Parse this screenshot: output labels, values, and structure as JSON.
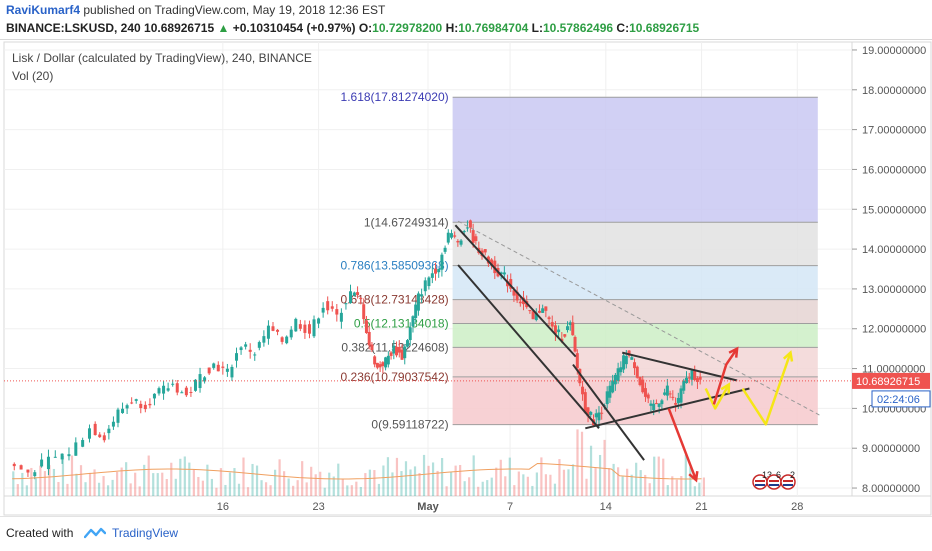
{
  "header": {
    "user": "RaviKumarf4",
    "published": "published on TradingView.com, May 19, 2018 12:36 EST",
    "symbol": "BINANCE:LSKUSD, 240",
    "last": "10.68926715",
    "change_arrow": "▲",
    "change": "+0.10310454 (+0.97%)",
    "o_label": "O:",
    "o": "10.72978200",
    "h_label": "H:",
    "h": "10.76984704",
    "l_label": "L:",
    "l": "10.57862496",
    "c_label": "C:",
    "c": "10.68926715"
  },
  "chart_data": {
    "type": "line",
    "title": "Lisk / Dollar (calculated by TradingView), 240, BINANCE",
    "subtitle": "Vol (20)",
    "ylim": [
      7.8,
      19.2
    ],
    "y_ticks": [
      "19.00000000",
      "18.00000000",
      "17.00000000",
      "16.00000000",
      "15.00000000",
      "14.00000000",
      "13.00000000",
      "12.00000000",
      "11.00000000",
      "10.00000000",
      "9.00000000",
      "8.00000000"
    ],
    "y_tick_values": [
      19,
      18,
      17,
      16,
      15,
      14,
      13,
      12,
      11,
      10,
      9,
      8
    ],
    "x_ticks": [
      "16",
      "23",
      "May",
      "7",
      "14",
      "21",
      "28"
    ],
    "x_tick_days": [
      -15,
      -8,
      0,
      6,
      13,
      20,
      27
    ],
    "xlim": [
      -31,
      31
    ],
    "current_price_label": "10.68926715",
    "countdown_label": "02:24:06",
    "current_price": 10.69,
    "price_path": [
      [
        -30.5,
        8.6
      ],
      [
        -29,
        8.4
      ],
      [
        -27.5,
        8.7
      ],
      [
        -26,
        8.9
      ],
      [
        -24.5,
        9.5
      ],
      [
        -23.5,
        9.3
      ],
      [
        -22.5,
        9.9
      ],
      [
        -21.5,
        10.2
      ],
      [
        -20.5,
        10.1
      ],
      [
        -19.5,
        10.4
      ],
      [
        -18.5,
        10.6
      ],
      [
        -17.5,
        10.3
      ],
      [
        -16.5,
        10.8
      ],
      [
        -15.5,
        11.1
      ],
      [
        -14.5,
        10.9
      ],
      [
        -13.5,
        11.6
      ],
      [
        -12.5,
        11.4
      ],
      [
        -11.5,
        12.0
      ],
      [
        -10.5,
        11.7
      ],
      [
        -9.5,
        12.2
      ],
      [
        -8.5,
        11.9
      ],
      [
        -7.5,
        12.6
      ],
      [
        -6.5,
        12.3
      ],
      [
        -5.5,
        12.9
      ],
      [
        -4.8,
        12.7
      ],
      [
        -4.2,
        11.6
      ],
      [
        -3.6,
        11.0
      ],
      [
        -3.0,
        11.2
      ],
      [
        -2.4,
        11.5
      ],
      [
        -1.8,
        11.3
      ],
      [
        -1.2,
        12.0
      ],
      [
        -0.6,
        12.8
      ],
      [
        0.2,
        13.3
      ],
      [
        0.9,
        13.6
      ],
      [
        1.6,
        14.4
      ],
      [
        2.3,
        14.2
      ],
      [
        3.0,
        14.6
      ],
      [
        3.6,
        14.1
      ],
      [
        4.3,
        13.8
      ],
      [
        5.0,
        13.5
      ],
      [
        5.7,
        13.3
      ],
      [
        6.4,
        12.9
      ],
      [
        7.1,
        12.6
      ],
      [
        7.8,
        12.2
      ],
      [
        8.5,
        12.6
      ],
      [
        9.2,
        12.0
      ],
      [
        9.9,
        11.8
      ],
      [
        10.5,
        12.1
      ],
      [
        11.0,
        11.0
      ],
      [
        11.6,
        10.0
      ],
      [
        12.2,
        9.7
      ],
      [
        12.8,
        10.0
      ],
      [
        13.4,
        10.5
      ],
      [
        14.0,
        10.9
      ],
      [
        14.6,
        11.4
      ],
      [
        15.2,
        11.1
      ],
      [
        15.8,
        10.4
      ],
      [
        16.4,
        10.0
      ],
      [
        17.0,
        10.2
      ],
      [
        17.6,
        10.5
      ],
      [
        18.2,
        10.1
      ],
      [
        18.8,
        10.6
      ],
      [
        19.4,
        10.9
      ],
      [
        20.0,
        10.69
      ]
    ],
    "fibonacci": {
      "x_start_day": 1.8,
      "x_end_day": 28.5,
      "levels": [
        {
          "label": "1.618(17.81274020)",
          "value": 17.8127,
          "fill": "#c9c8f2"
        },
        {
          "label": "1(14.67249314)",
          "value": 14.6725,
          "fill": "#e2e2e2"
        },
        {
          "label": "0.786(13.58509368)",
          "value": 13.5851,
          "fill": "#d3e6f6"
        },
        {
          "label": "0.618(12.73143428)",
          "value": 12.7314,
          "fill": "#e5d4d2"
        },
        {
          "label": "0.5(12.13184018)",
          "value": 12.1318,
          "fill": "#cdeec6"
        },
        {
          "label": "0.382(11.53224608)",
          "value": 11.5322,
          "fill": "#f2d6d6"
        },
        {
          "label": "0.236(10.79037542)",
          "value": 10.7904,
          "fill": "#f6c9cc"
        },
        {
          "label": "0(9.59118722)",
          "value": 9.5912,
          "fill": null
        }
      ]
    },
    "volume_badge_counts": [
      "13",
      "6",
      "2"
    ],
    "colors": {
      "up": "#26a69a",
      "down": "#ef5350",
      "fib_label": "#555555",
      "fib_label_top": "#3b3bb3",
      "fib_label_786": "#2a7fc1",
      "fib_label_5": "#2e9e44",
      "fib_label_618": "#8a3a32",
      "current": "#ef5350",
      "countdown": "#2962c8"
    }
  },
  "footer": {
    "created": "Created with",
    "brand": "TradingView"
  }
}
